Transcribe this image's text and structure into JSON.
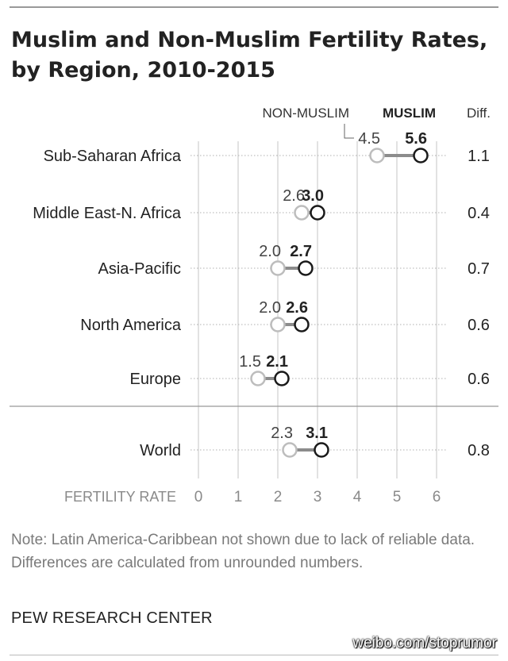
{
  "title_line1": "Muslim and Non-Muslim Fertility Rates,",
  "title_line2": "by Region, 2010-2015",
  "header": {
    "non_muslim": "NON-MUSLIM",
    "muslim": "MUSLIM",
    "diff": "Diff."
  },
  "note": "Note: Latin America-Caribbean not shown due to lack of reliable data. Differences are calculated from unrounded numbers.",
  "source": "PEW RESEARCH CENTER",
  "watermark": "weibo.com/stoprumor",
  "colors": {
    "non_muslim_marker": "#bdbdbd",
    "muslim_marker": "#1a1a1a",
    "connector": "#8c8c8c",
    "grid": "#c4c4c4"
  },
  "chart_data": {
    "type": "dot-plot",
    "xlabel": "FERTILITY RATE",
    "xlim": [
      0,
      6
    ],
    "xticks": [
      "0",
      "1",
      "2",
      "3",
      "4",
      "5",
      "6"
    ],
    "grid": true,
    "series": [
      {
        "name": "NON-MUSLIM",
        "values": [
          4.5,
          2.6,
          2.0,
          2.0,
          1.5,
          2.3
        ]
      },
      {
        "name": "MUSLIM",
        "values": [
          5.6,
          3.0,
          2.7,
          2.6,
          2.1,
          3.1
        ]
      }
    ],
    "rows": [
      {
        "label": "Sub-Saharan Africa",
        "non_muslim": 4.5,
        "muslim": 5.6,
        "non_muslim_label": "4.5",
        "muslim_label": "5.6",
        "diff": "1.1"
      },
      {
        "label": "Middle East-N. Africa",
        "non_muslim": 2.6,
        "muslim": 3.0,
        "non_muslim_label": "2.6",
        "muslim_label": "3.0",
        "diff": "0.4"
      },
      {
        "label": "Asia-Pacific",
        "non_muslim": 2.0,
        "muslim": 2.7,
        "non_muslim_label": "2.0",
        "muslim_label": "2.7",
        "diff": "0.7"
      },
      {
        "label": "North America",
        "non_muslim": 2.0,
        "muslim": 2.6,
        "non_muslim_label": "2.0",
        "muslim_label": "2.6",
        "diff": "0.6"
      },
      {
        "label": "Europe",
        "non_muslim": 1.5,
        "muslim": 2.1,
        "non_muslim_label": "1.5",
        "muslim_label": "2.1",
        "diff": "0.6"
      },
      {
        "label": "World",
        "non_muslim": 2.3,
        "muslim": 3.1,
        "non_muslim_label": "2.3",
        "muslim_label": "3.1",
        "diff": "0.8"
      }
    ]
  }
}
